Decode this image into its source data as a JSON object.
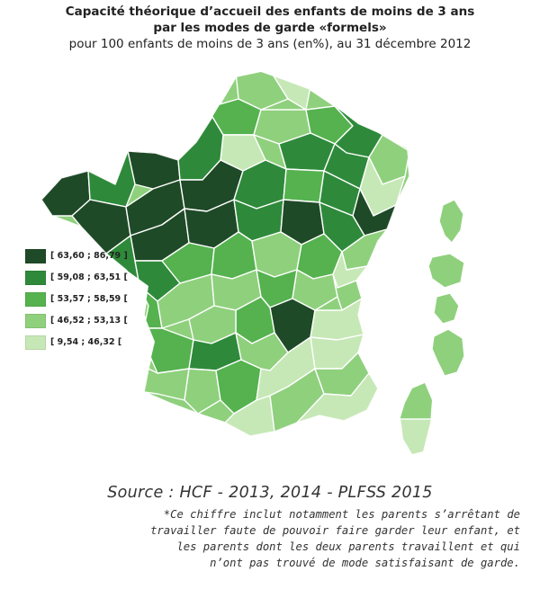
{
  "title": {
    "line1": "Capacité théorique d’accueil des enfants de moins de 3 ans",
    "line2": "par les modes de garde «formels»",
    "line3": "pour 100 enfants de moins de 3 ans (en%), au 31 décembre 2012"
  },
  "legend": {
    "items": [
      {
        "label": "[ 63,60 ; 86,79 ]",
        "color": "#1f4a27"
      },
      {
        "label": "[ 59,08 ; 63,51 [",
        "color": "#2e8a3a"
      },
      {
        "label": "[ 53,57 ; 58,59 [",
        "color": "#55b24f"
      },
      {
        "label": "[ 46,52 ; 53,13 [",
        "color": "#8fd07d"
      },
      {
        "label": "[ 9,54 ; 46,32 [",
        "color": "#c6e8b6"
      }
    ]
  },
  "source": "Source : HCF - 2013, 2014 - PLFSS 2015",
  "note": {
    "line1": "*Ce chiffre inclut notamment les parents s’arrêtant de",
    "line2": "travailler faute de pouvoir faire garder leur enfant, et",
    "line3": "les parents dont les deux parents travaillent et qui",
    "line4": "n’ont pas trouvé de mode satisfaisant de garde."
  }
}
